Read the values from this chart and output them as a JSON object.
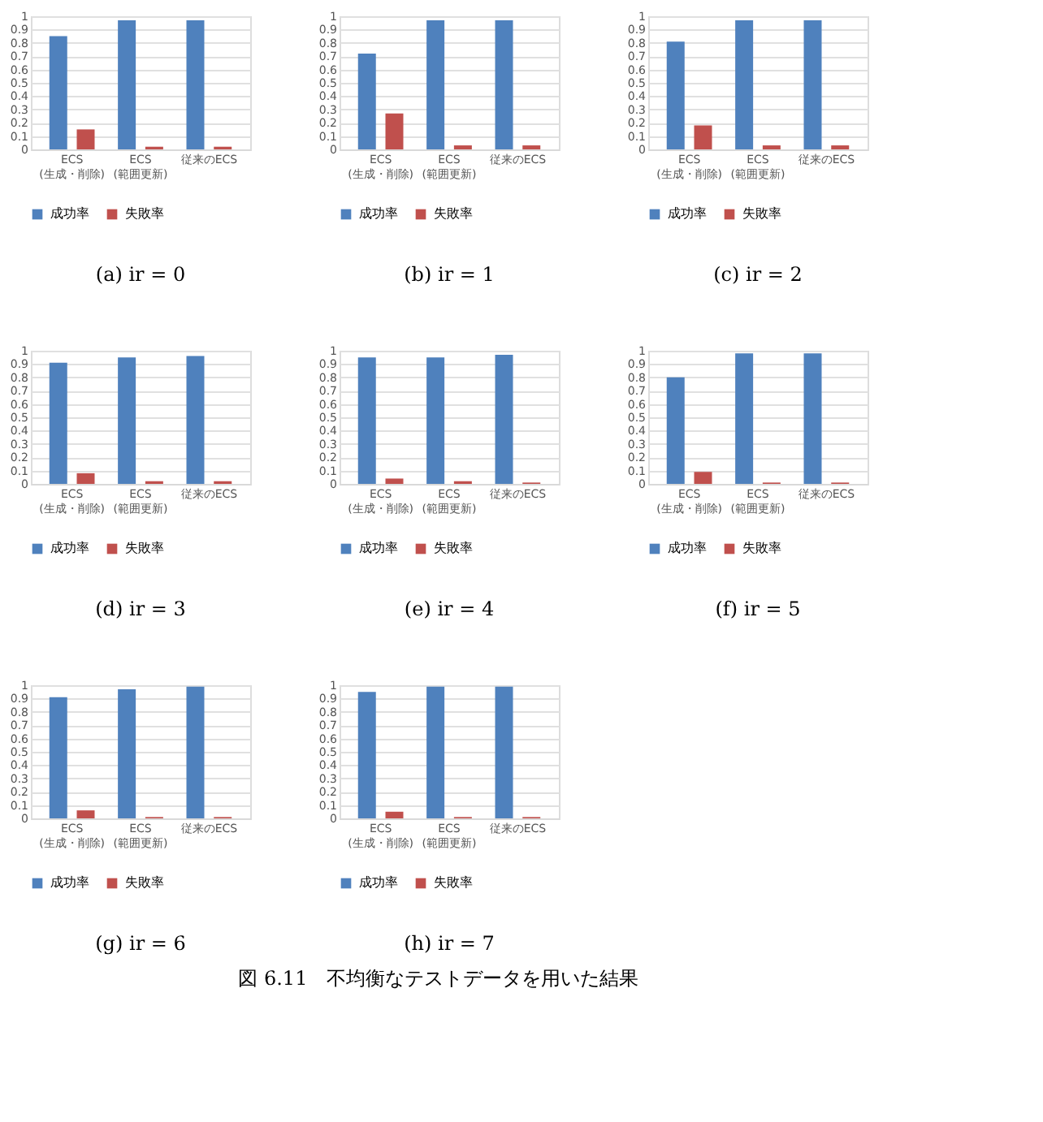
{
  "chart_data": [
    {
      "type": "bar",
      "title": "(a) ir = 0",
      "categories": [
        "ECS\n(生成・削除)",
        "ECS\n(範囲更新)",
        "従来のECS"
      ],
      "ylim": [
        0,
        1
      ],
      "yticks": [
        0,
        0.1,
        0.2,
        0.3,
        0.4,
        0.5,
        0.6,
        0.7,
        0.8,
        0.9,
        1
      ],
      "grid": "y",
      "legend": "bottom",
      "series": [
        {
          "name": "成功率",
          "color": "#4f81bd",
          "values": [
            0.85,
            0.97,
            0.97
          ]
        },
        {
          "name": "失敗率",
          "color": "#c0504d",
          "values": [
            0.15,
            0.02,
            0.02
          ]
        }
      ]
    },
    {
      "type": "bar",
      "title": "(b) ir = 1",
      "categories": [
        "ECS\n(生成・削除)",
        "ECS\n(範囲更新)",
        "従来のECS"
      ],
      "ylim": [
        0,
        1
      ],
      "yticks": [
        0,
        0.1,
        0.2,
        0.3,
        0.4,
        0.5,
        0.6,
        0.7,
        0.8,
        0.9,
        1
      ],
      "grid": "y",
      "legend": "bottom",
      "series": [
        {
          "name": "成功率",
          "color": "#4f81bd",
          "values": [
            0.72,
            0.97,
            0.97
          ]
        },
        {
          "name": "失敗率",
          "color": "#c0504d",
          "values": [
            0.27,
            0.03,
            0.03
          ]
        }
      ]
    },
    {
      "type": "bar",
      "title": "(c) ir = 2",
      "categories": [
        "ECS\n(生成・削除)",
        "ECS\n(範囲更新)",
        "従来のECS"
      ],
      "ylim": [
        0,
        1
      ],
      "yticks": [
        0,
        0.1,
        0.2,
        0.3,
        0.4,
        0.5,
        0.6,
        0.7,
        0.8,
        0.9,
        1
      ],
      "grid": "y",
      "legend": "bottom",
      "series": [
        {
          "name": "成功率",
          "color": "#4f81bd",
          "values": [
            0.81,
            0.97,
            0.97
          ]
        },
        {
          "name": "失敗率",
          "color": "#c0504d",
          "values": [
            0.18,
            0.03,
            0.03
          ]
        }
      ]
    },
    {
      "type": "bar",
      "title": "(d) ir = 3",
      "categories": [
        "ECS\n(生成・削除)",
        "ECS\n(範囲更新)",
        "従来のECS"
      ],
      "ylim": [
        0,
        1
      ],
      "yticks": [
        0,
        0.1,
        0.2,
        0.3,
        0.4,
        0.5,
        0.6,
        0.7,
        0.8,
        0.9,
        1
      ],
      "grid": "y",
      "legend": "bottom",
      "series": [
        {
          "name": "成功率",
          "color": "#4f81bd",
          "values": [
            0.91,
            0.95,
            0.96
          ]
        },
        {
          "name": "失敗率",
          "color": "#c0504d",
          "values": [
            0.08,
            0.02,
            0.02
          ]
        }
      ]
    },
    {
      "type": "bar",
      "title": "(e) ir = 4",
      "categories": [
        "ECS\n(生成・削除)",
        "ECS\n(範囲更新)",
        "従来のECS"
      ],
      "ylim": [
        0,
        1
      ],
      "yticks": [
        0,
        0.1,
        0.2,
        0.3,
        0.4,
        0.5,
        0.6,
        0.7,
        0.8,
        0.9,
        1
      ],
      "grid": "y",
      "legend": "bottom",
      "series": [
        {
          "name": "成功率",
          "color": "#4f81bd",
          "values": [
            0.95,
            0.95,
            0.97
          ]
        },
        {
          "name": "失敗率",
          "color": "#c0504d",
          "values": [
            0.04,
            0.02,
            0.01
          ]
        }
      ]
    },
    {
      "type": "bar",
      "title": "(f) ir = 5",
      "categories": [
        "ECS\n(生成・削除)",
        "ECS\n(範囲更新)",
        "従来のECS"
      ],
      "ylim": [
        0,
        1
      ],
      "yticks": [
        0,
        0.1,
        0.2,
        0.3,
        0.4,
        0.5,
        0.6,
        0.7,
        0.8,
        0.9,
        1
      ],
      "grid": "y",
      "legend": "bottom",
      "series": [
        {
          "name": "成功率",
          "color": "#4f81bd",
          "values": [
            0.8,
            0.98,
            0.98
          ]
        },
        {
          "name": "失敗率",
          "color": "#c0504d",
          "values": [
            0.09,
            0.01,
            0.01
          ]
        }
      ]
    },
    {
      "type": "bar",
      "title": "(g) ir = 6",
      "categories": [
        "ECS\n(生成・削除)",
        "ECS\n(範囲更新)",
        "従来のECS"
      ],
      "ylim": [
        0,
        1
      ],
      "yticks": [
        0,
        0.1,
        0.2,
        0.3,
        0.4,
        0.5,
        0.6,
        0.7,
        0.8,
        0.9,
        1
      ],
      "grid": "y",
      "legend": "bottom",
      "series": [
        {
          "name": "成功率",
          "color": "#4f81bd",
          "values": [
            0.91,
            0.97,
            0.99
          ]
        },
        {
          "name": "失敗率",
          "color": "#c0504d",
          "values": [
            0.06,
            0.01,
            0.01
          ]
        }
      ]
    },
    {
      "type": "bar",
      "title": "(h) ir = 7",
      "categories": [
        "ECS\n(生成・削除)",
        "ECS\n(範囲更新)",
        "従来のECS"
      ],
      "ylim": [
        0,
        1
      ],
      "yticks": [
        0,
        0.1,
        0.2,
        0.3,
        0.4,
        0.5,
        0.6,
        0.7,
        0.8,
        0.9,
        1
      ],
      "grid": "y",
      "legend": "bottom",
      "annotations": [
        "図 6.11　不均衡なテストデータを用いた結果"
      ],
      "series": [
        {
          "name": "成功率",
          "color": "#4f81bd",
          "values": [
            0.95,
            0.99,
            0.99
          ]
        },
        {
          "name": "失敗率",
          "color": "#c0504d",
          "values": [
            0.05,
            0.01,
            0.01
          ]
        }
      ]
    }
  ]
}
